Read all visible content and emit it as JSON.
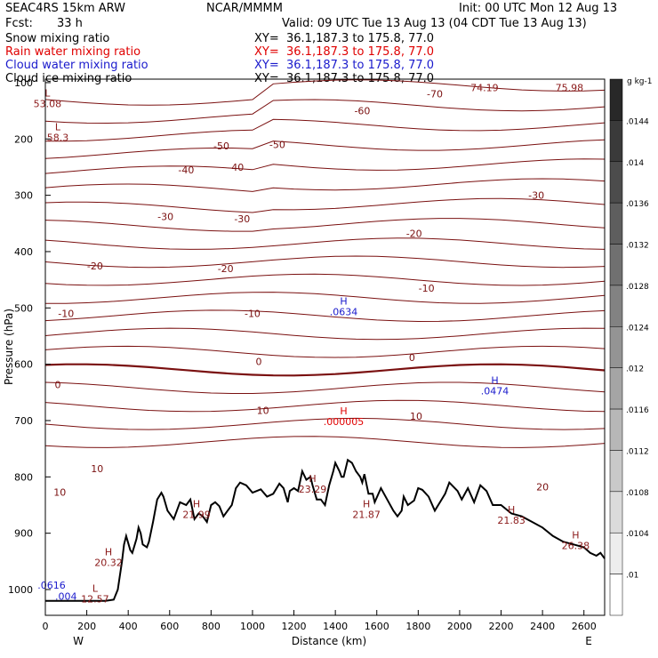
{
  "header": {
    "model": "SEAC4RS 15km ARW",
    "org": "NCAR/MMMM",
    "init": "Init: 00 UTC Mon 12 Aug 13",
    "fcst_label": "Fcst:",
    "fcst_value": "33 h",
    "valid": "Valid: 09 UTC Tue 13 Aug 13 (04 CDT Tue 13 Aug 13)",
    "fields": [
      {
        "name": "Snow mixing ratio",
        "xy": "XY=  36.1,187.3 to 175.8, 77.0",
        "color": "#000000"
      },
      {
        "name": "Rain water mixing ratio",
        "xy": "XY=  36.1,187.3 to 175.8, 77.0",
        "color": "#e00000"
      },
      {
        "name": "Cloud water mixing ratio",
        "xy": "XY=  36.1,187.3 to 175.8, 77.0",
        "color": "#1a1acc"
      },
      {
        "name": "Cloud ice mixing ratio",
        "xy": "XY=  36.1,187.3 to 175.8, 77.0",
        "color": "#000000"
      }
    ]
  },
  "chart_data": {
    "type": "contour-cross-section",
    "xlabel": "Distance (km)",
    "ylabel": "Pressure (hPa)",
    "x_ticks": [
      0,
      200,
      400,
      600,
      800,
      1000,
      1200,
      1400,
      1600,
      1800,
      2000,
      2200,
      2400,
      2600
    ],
    "y_ticks": [
      100,
      200,
      300,
      400,
      500,
      600,
      700,
      800,
      900,
      1000
    ],
    "x_end_labels": {
      "left": "W",
      "right": "E"
    },
    "colorbar": {
      "unit": "g kg-1",
      "ticks": [
        ".0144",
        ".014",
        ".0136",
        ".0132",
        ".0128",
        ".0124",
        ".012",
        ".0116",
        ".0112",
        ".0108",
        ".0104",
        ".01"
      ]
    },
    "temperature_contour_labels": [
      {
        "text": "-70",
        "x": 1880,
        "p": 120
      },
      {
        "text": "-60",
        "x": 1530,
        "p": 150
      },
      {
        "text": "-50",
        "x": 850,
        "p": 212
      },
      {
        "text": "-50",
        "x": 1120,
        "p": 210
      },
      {
        "text": "-40",
        "x": 680,
        "p": 255
      },
      {
        "text": "-40",
        "x": 920,
        "p": 250
      },
      {
        "text": "-30",
        "x": 2370,
        "p": 300
      },
      {
        "text": "-30",
        "x": 580,
        "p": 338
      },
      {
        "text": "-30",
        "x": 950,
        "p": 342
      },
      {
        "text": "-20",
        "x": 1780,
        "p": 368
      },
      {
        "text": "-20",
        "x": 240,
        "p": 425
      },
      {
        "text": "-20",
        "x": 870,
        "p": 430
      },
      {
        "text": "-10",
        "x": 1840,
        "p": 465
      },
      {
        "text": "-10",
        "x": 100,
        "p": 510
      },
      {
        "text": "-10",
        "x": 1000,
        "p": 510
      },
      {
        "text": "0",
        "x": 1030,
        "p": 595
      },
      {
        "text": "0",
        "x": 1770,
        "p": 588
      },
      {
        "text": "0",
        "x": 60,
        "p": 636
      },
      {
        "text": "10",
        "x": 1050,
        "p": 682
      },
      {
        "text": "10",
        "x": 1790,
        "p": 692
      },
      {
        "text": "10",
        "x": 250,
        "p": 785
      },
      {
        "text": "10",
        "x": 70,
        "p": 827
      },
      {
        "text": "20",
        "x": 2400,
        "p": 818
      }
    ],
    "extrema": [
      {
        "mark": "L",
        "value": "53.08",
        "x": 10,
        "p": 140,
        "color": "#8b1a1a"
      },
      {
        "mark": "L",
        "value": "58.3",
        "x": 60,
        "p": 200,
        "color": "#8b1a1a"
      },
      {
        "mark": "",
        "value": "74.19",
        "x": 2120,
        "p": 112,
        "color": "#8b1a1a"
      },
      {
        "mark": "",
        "value": "75.98",
        "x": 2530,
        "p": 112,
        "color": "#8b1a1a"
      },
      {
        "mark": "H",
        "value": ".0634",
        "x": 1440,
        "p": 510,
        "color": "#1a1acc"
      },
      {
        "mark": "H",
        "value": ".0474",
        "x": 2170,
        "p": 650,
        "color": "#1a1acc"
      },
      {
        "mark": "H",
        "value": ".000005",
        "x": 1440,
        "p": 705,
        "color": "#e00000"
      },
      {
        "mark": "H",
        "value": "21.99",
        "x": 730,
        "p": 870,
        "color": "#8b1a1a"
      },
      {
        "mark": "H",
        "value": "23.29",
        "x": 1290,
        "p": 825,
        "color": "#8b1a1a"
      },
      {
        "mark": "H",
        "value": "21.87",
        "x": 1550,
        "p": 870,
        "color": "#8b1a1a"
      },
      {
        "mark": "H",
        "value": "21.83",
        "x": 2250,
        "p": 880,
        "color": "#8b1a1a"
      },
      {
        "mark": "H",
        "value": "26.38",
        "x": 2560,
        "p": 925,
        "color": "#8b1a1a"
      },
      {
        "mark": "H",
        "value": "20.32",
        "x": 305,
        "p": 955,
        "color": "#8b1a1a"
      },
      {
        "mark": "L",
        "value": "12.57",
        "x": 240,
        "p": 1020,
        "color": "#8b1a1a"
      },
      {
        "mark": "",
        "value": ".0616",
        "x": 30,
        "p": 995,
        "color": "#1a1acc"
      },
      {
        "mark": "",
        "value": ".004",
        "x": 100,
        "p": 1015,
        "color": "#1a1acc"
      }
    ],
    "terrain": {
      "x": [
        0,
        140,
        240,
        260,
        290,
        330,
        350,
        370,
        380,
        390,
        410,
        420,
        440,
        450,
        460,
        470,
        490,
        500,
        520,
        540,
        560,
        570,
        590,
        610,
        620,
        650,
        680,
        700,
        720,
        740,
        760,
        780,
        800,
        820,
        840,
        860,
        880,
        900,
        920,
        940,
        970,
        1000,
        1040,
        1070,
        1100,
        1130,
        1150,
        1170,
        1180,
        1200,
        1220,
        1240,
        1260,
        1280,
        1290,
        1310,
        1330,
        1350,
        1370,
        1390,
        1400,
        1420,
        1430,
        1440,
        1450,
        1460,
        1480,
        1500,
        1520,
        1530,
        1540,
        1560,
        1580,
        1590,
        1620,
        1650,
        1680,
        1700,
        1720,
        1730,
        1750,
        1780,
        1800,
        1820,
        1850,
        1880,
        1910,
        1930,
        1950,
        1990,
        2010,
        2040,
        2070,
        2100,
        2130,
        2160,
        2200,
        2250,
        2300,
        2350,
        2400,
        2450,
        2500,
        2550,
        2600,
        2630,
        2660,
        2680,
        2700
      ],
      "p": [
        1020,
        1020,
        1020,
        1020,
        1020,
        1018,
        1000,
        950,
        920,
        905,
        930,
        935,
        910,
        890,
        900,
        920,
        925,
        915,
        880,
        840,
        828,
        835,
        860,
        870,
        875,
        845,
        850,
        840,
        875,
        865,
        870,
        880,
        850,
        845,
        852,
        870,
        860,
        850,
        820,
        810,
        815,
        828,
        822,
        835,
        830,
        812,
        820,
        845,
        825,
        820,
        825,
        790,
        805,
        800,
        815,
        840,
        840,
        850,
        815,
        790,
        775,
        790,
        800,
        800,
        785,
        770,
        775,
        790,
        800,
        810,
        795,
        830,
        830,
        845,
        820,
        840,
        860,
        870,
        860,
        835,
        850,
        842,
        820,
        823,
        835,
        860,
        842,
        830,
        810,
        825,
        840,
        820,
        845,
        815,
        825,
        850,
        850,
        865,
        870,
        880,
        890,
        905,
        915,
        920,
        925,
        935,
        940,
        935,
        945
      ]
    }
  }
}
